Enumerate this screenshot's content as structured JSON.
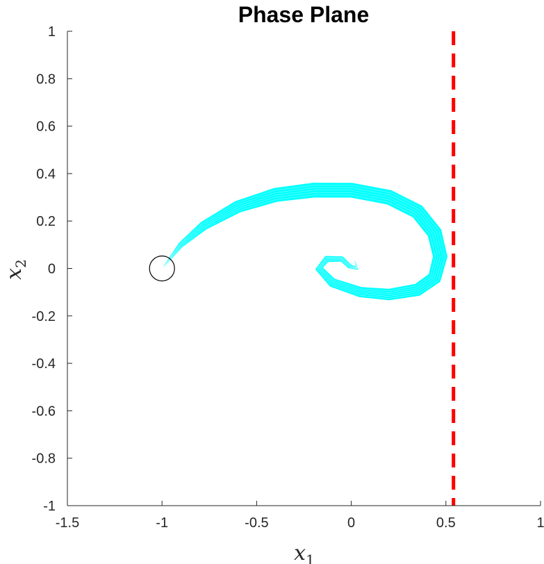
{
  "chart_data": {
    "type": "line",
    "title": "Phase Plane",
    "xlabel": "x",
    "xlabel_sub": "1",
    "ylabel": "x",
    "ylabel_sub": "2",
    "xlim": [
      -1.5,
      1
    ],
    "ylim": [
      -1,
      1
    ],
    "xticks": [
      -1.5,
      -1,
      -0.5,
      0,
      0.5,
      1
    ],
    "xtick_labels": [
      "-1.5",
      "-1",
      "-0.5",
      "0",
      "0.5",
      "1"
    ],
    "yticks": [
      1,
      0.8,
      0.6,
      0.4,
      0.2,
      0,
      -0.2,
      -0.4,
      -0.6,
      -0.8,
      -1
    ],
    "ytick_labels": [
      "1",
      "0.8",
      "0.6",
      "0.4",
      "0.2",
      "0",
      "-0.2",
      "-0.4",
      "-0.6",
      "-0.8",
      "-1"
    ],
    "grid": false,
    "series": [
      {
        "color": "#00ffff",
        "style": "band of many trajectories",
        "centerline": [
          [
            -0.99,
            0.01
          ],
          [
            -0.9,
            0.1
          ],
          [
            -0.78,
            0.18
          ],
          [
            -0.6,
            0.26
          ],
          [
            -0.4,
            0.31
          ],
          [
            -0.2,
            0.33
          ],
          [
            0.0,
            0.33
          ],
          [
            0.2,
            0.3
          ],
          [
            0.35,
            0.24
          ],
          [
            0.44,
            0.15
          ],
          [
            0.47,
            0.05
          ],
          [
            0.44,
            -0.04
          ],
          [
            0.35,
            -0.09
          ],
          [
            0.2,
            -0.11
          ],
          [
            0.05,
            -0.1
          ],
          [
            -0.1,
            -0.06
          ],
          [
            -0.17,
            0.0
          ],
          [
            -0.13,
            0.04
          ],
          [
            -0.05,
            0.04
          ],
          [
            -0.01,
            0.01
          ],
          [
            0.03,
            0.0
          ],
          [
            0.02,
            0.03
          ]
        ],
        "half_width": [
          0.0,
          0.012,
          0.022,
          0.03,
          0.035,
          0.037,
          0.037,
          0.037,
          0.037,
          0.037,
          0.036,
          0.034,
          0.031,
          0.028,
          0.025,
          0.022,
          0.018,
          0.015,
          0.012,
          0.01,
          0.006,
          0.0
        ]
      }
    ],
    "markers": [
      {
        "type": "circle",
        "x": -1,
        "y": 0,
        "color": "#000000"
      }
    ],
    "reference_lines": [
      {
        "type": "vertical",
        "x": 0.54,
        "color": "#ff0000",
        "style": "dashed"
      }
    ]
  }
}
